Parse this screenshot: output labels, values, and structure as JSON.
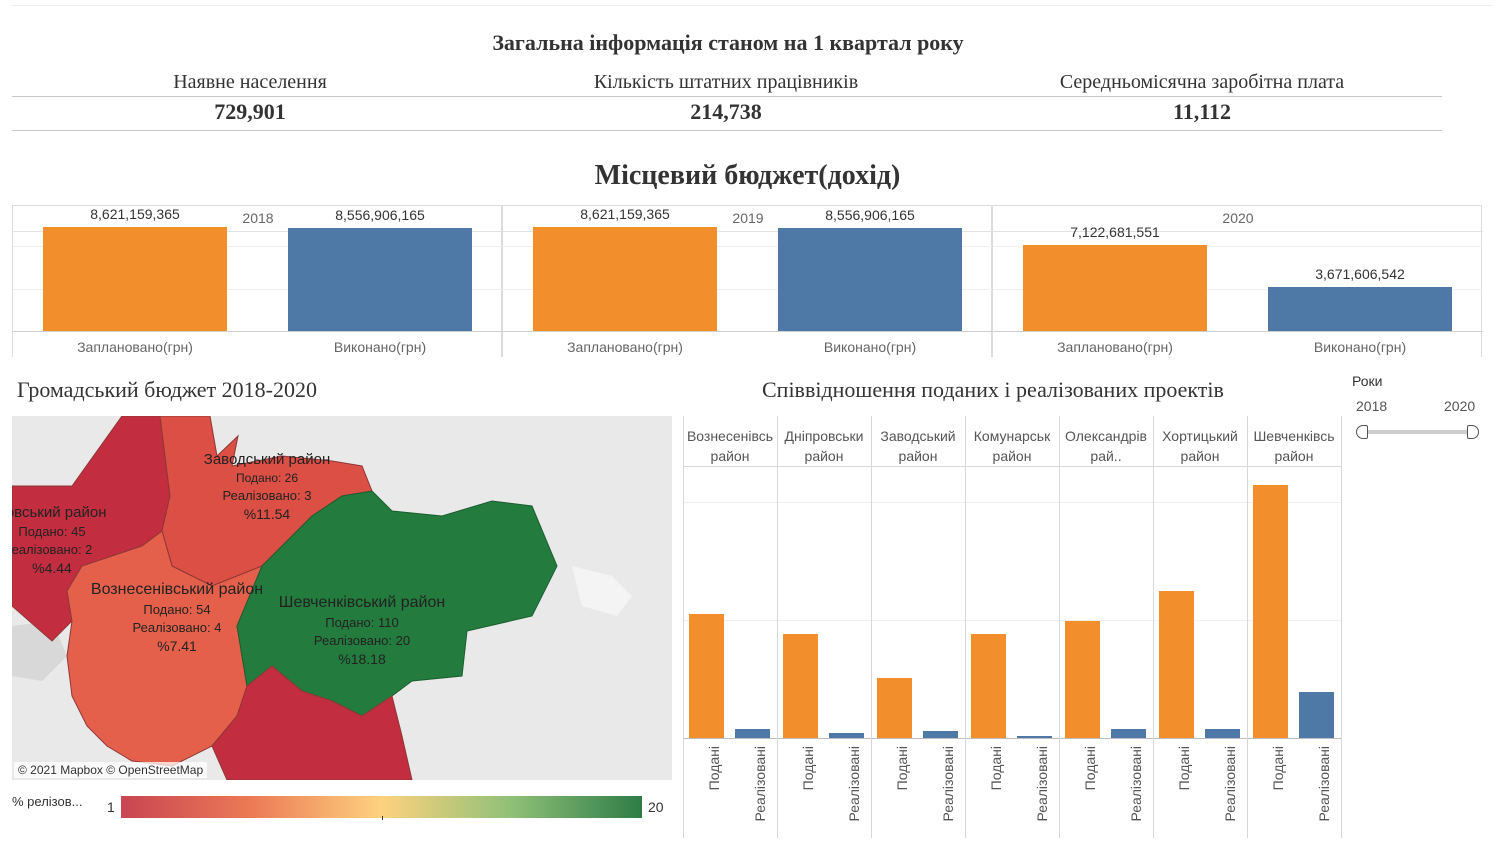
{
  "kpi": {
    "title": "Загальна інформація станом на 1 квартал року",
    "items": [
      {
        "label": "Наявне населення",
        "value": "729,901"
      },
      {
        "label": "Кількість штатних працівників",
        "value": "214,738"
      },
      {
        "label": "Середньомісячна заробітна плата",
        "value": "11,112"
      }
    ]
  },
  "budget": {
    "title": "Місцевий бюджет(дохід)",
    "categories": [
      "Заплановано(грн)",
      "Виконано(грн)"
    ],
    "panels": [
      {
        "year": "2018",
        "labels": [
          "8,621,159,365",
          "8,556,906,165"
        ]
      },
      {
        "year": "2019",
        "labels": [
          "8,621,159,365",
          "8,556,906,165"
        ]
      },
      {
        "year": "2020",
        "labels": [
          "7,122,681,551",
          "3,671,606,542"
        ]
      }
    ]
  },
  "map": {
    "title": "Громадський бюджет 2018-2020",
    "attribution": "© 2021 Mapbox  © OpenStreetMap",
    "districts": [
      {
        "name": "Заводський район",
        "submitted": "Подано: 26",
        "realized": "Реалізовано: 3",
        "pct": "%11.54"
      },
      {
        "name": "ровський район",
        "submitted": "Подано: 45",
        "realized": "еалізовано: 2",
        "pct": "%4.44"
      },
      {
        "name": "Вознесенівський район",
        "submitted": "Подано: 54",
        "realized": "Реалізовано: 4",
        "pct": "%7.41"
      },
      {
        "name": "Шевченківський район",
        "submitted": "Подано: 110",
        "realized": "Реалізовано: 20",
        "pct": "%18.18"
      }
    ],
    "legend": {
      "label": "% релізов...",
      "min": "1",
      "max": "20"
    }
  },
  "projects": {
    "title": "Співвідношення поданих і реалізованих проектів",
    "bar_labels": [
      "Подані",
      "Реалізовані"
    ],
    "districts": [
      {
        "name": [
          "Вознесенівсь",
          "район"
        ]
      },
      {
        "name": [
          "Дніпровськи",
          "район"
        ]
      },
      {
        "name": [
          "Заводський",
          "район"
        ]
      },
      {
        "name": [
          "Комунарськ",
          "район"
        ]
      },
      {
        "name": [
          "Олександрів",
          "рай.."
        ]
      },
      {
        "name": [
          "Хортицький",
          "район"
        ]
      },
      {
        "name": [
          "Шевченківсь",
          "район"
        ]
      }
    ]
  },
  "filter": {
    "title": "Роки",
    "min": "2018",
    "max": "2020"
  },
  "colors": {
    "planned": "#f28e2b",
    "done": "#4e79a7",
    "red": "#c22e3f",
    "red_mid": "#dc4f45",
    "salmon": "#e5604b",
    "green": "#237b3e"
  },
  "chart_data": [
    {
      "type": "bar",
      "title": "Місцевий бюджет(дохід)",
      "categories": [
        "Заплановано(грн)",
        "Виконано(грн)"
      ],
      "panels": [
        {
          "year": "2018",
          "values": [
            8621159365,
            8556906165
          ]
        },
        {
          "year": "2019",
          "values": [
            8621159365,
            8556906165
          ]
        },
        {
          "year": "2020",
          "values": [
            7122681551,
            3671606542
          ]
        }
      ]
    },
    {
      "type": "bar",
      "title": "Співвідношення поданих і реалізованих проектів",
      "categories": [
        "Вознесенівський район",
        "Дніпровський район",
        "Заводський район",
        "Комунарський район",
        "Олександрівський район",
        "Хортицький район",
        "Шевченківський район"
      ],
      "series": [
        {
          "name": "Подані",
          "values": [
            54,
            45,
            26,
            45,
            51,
            64,
            110
          ]
        },
        {
          "name": "Реалізовані",
          "values": [
            4,
            2,
            3,
            1,
            4,
            4,
            20
          ]
        }
      ],
      "ylim": [
        0,
        116
      ]
    }
  ]
}
